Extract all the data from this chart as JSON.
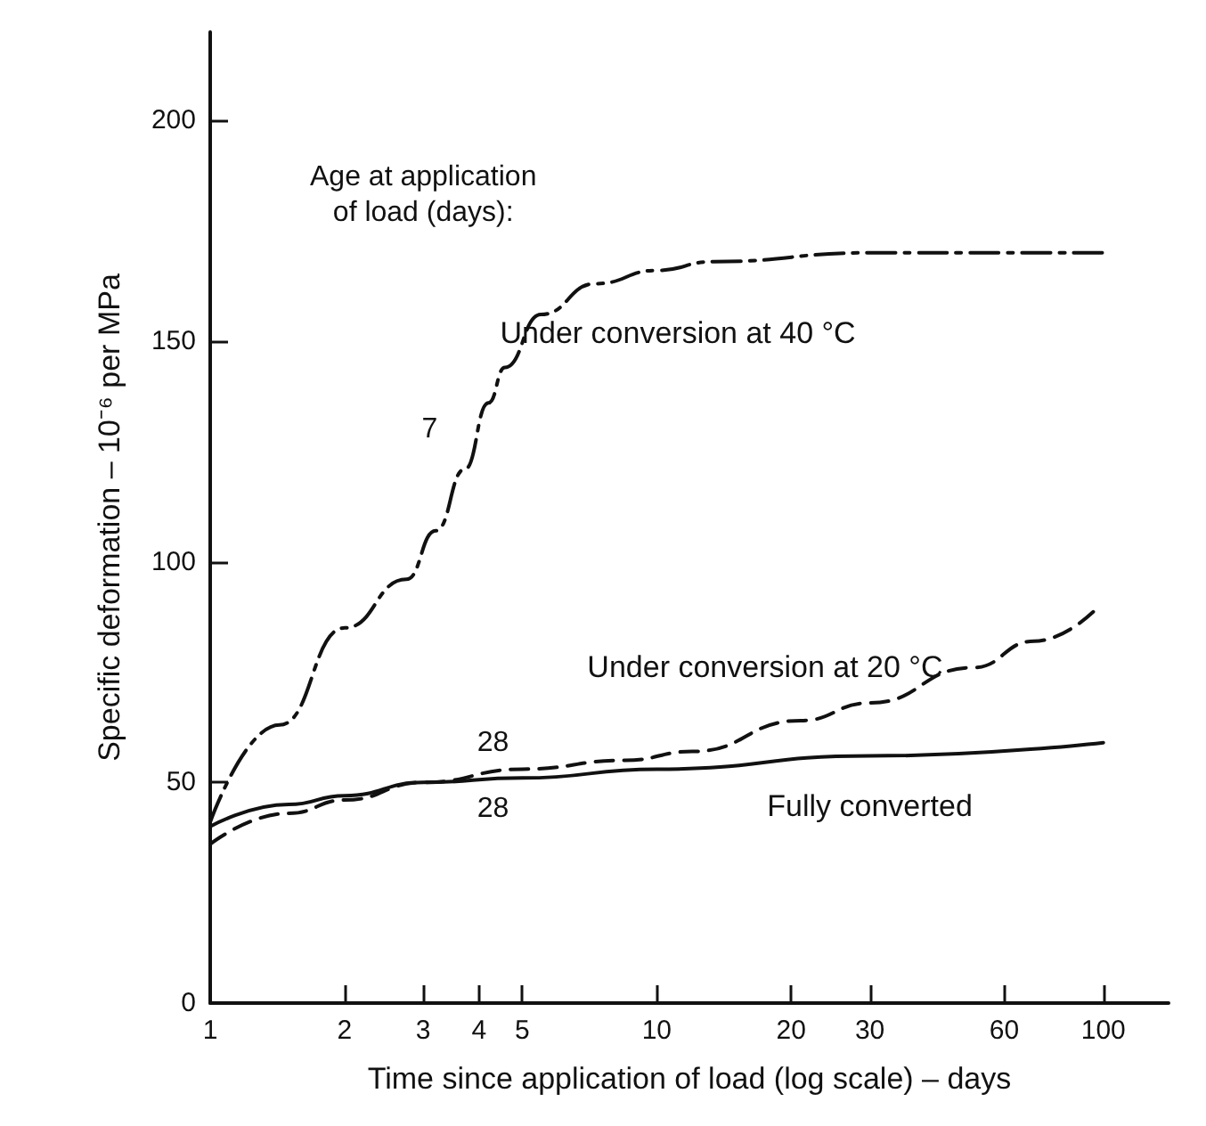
{
  "chart_data": {
    "type": "line",
    "xlabel": "Time since application of load (log scale) – days",
    "ylabel": "Specific deformation – 10⁻⁶ per MPa",
    "log": "x",
    "xlim": [
      1,
      140
    ],
    "ylim": [
      0,
      220
    ],
    "xticks": [
      1,
      2,
      3,
      4,
      5,
      10,
      20,
      30,
      60,
      100
    ],
    "yticks": [
      0,
      50,
      100,
      150,
      200
    ],
    "grid": false,
    "legend": false,
    "marker": "none",
    "series": [
      {
        "name": "Under conversion at 40 °C",
        "color": "#111111",
        "line_style": "dashdot",
        "x": [
          1,
          1.43,
          2,
          2.75,
          3.2,
          3.72,
          4.2,
          4.57,
          5.5,
          7.3,
          10,
          13.4,
          30,
          60,
          100
        ],
        "values": [
          41,
          63,
          85,
          96,
          107,
          121,
          136,
          144,
          156,
          163,
          166,
          168,
          170,
          170,
          170
        ]
      },
      {
        "name": "Under conversion at 20 °C",
        "color": "#111111",
        "line_style": "dashed",
        "x": [
          1,
          1.5,
          2,
          3,
          5,
          8.5,
          12,
          21,
          30,
          51,
          70,
          98
        ],
        "values": [
          36,
          43,
          46,
          50,
          53,
          55,
          57,
          64,
          68,
          76,
          82,
          90
        ]
      },
      {
        "name": "Fully converted",
        "color": "#111111",
        "line_style": "solid",
        "x": [
          1,
          1.5,
          2,
          3,
          5,
          10,
          30,
          100
        ],
        "values": [
          40,
          45,
          47,
          50,
          51,
          53,
          56,
          59
        ]
      }
    ],
    "annotations": [
      "Age at application\nof load (days):",
      "7",
      "28",
      "28"
    ]
  }
}
